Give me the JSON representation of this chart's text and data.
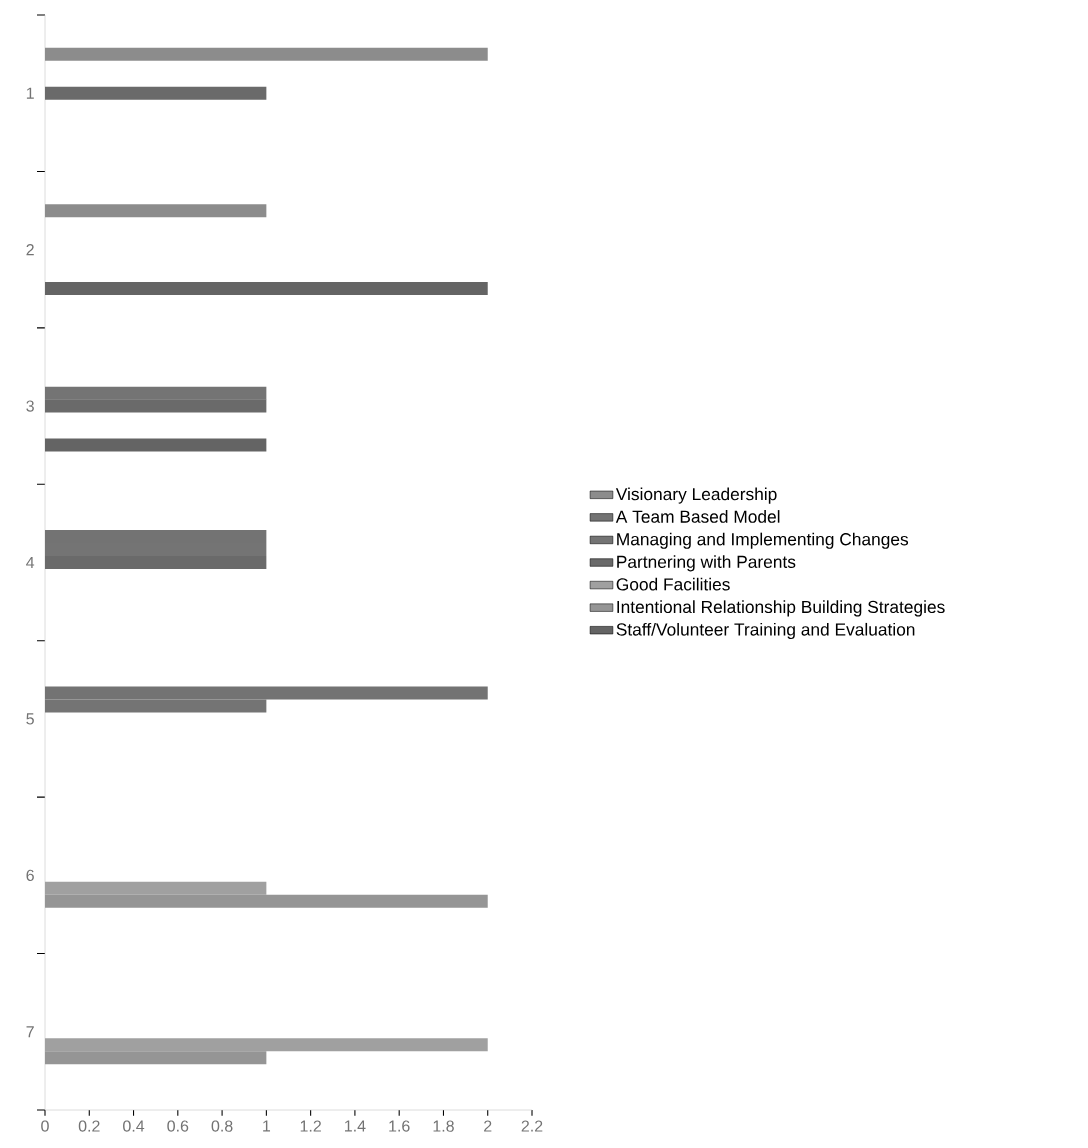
{
  "chart_data": {
    "type": "bar",
    "orientation": "horizontal",
    "categories": [
      "1",
      "2",
      "3",
      "4",
      "5",
      "6",
      "7"
    ],
    "xlim": [
      0,
      2.2
    ],
    "xticks": [
      0,
      0.2,
      0.4,
      0.6,
      0.8,
      1,
      1.2,
      1.4,
      1.6,
      1.8,
      2,
      2.2
    ],
    "grid": false,
    "legend": "right",
    "series": [
      {
        "name": "Visionary Leadership",
        "color": "#8c8c8c",
        "values": [
          2,
          1,
          null,
          null,
          null,
          null,
          null
        ]
      },
      {
        "name": "A Team Based Model",
        "color": "#737373",
        "values": [
          null,
          null,
          null,
          1,
          2,
          null,
          null
        ]
      },
      {
        "name": "Managing and Implementing Changes",
        "color": "#747474",
        "values": [
          null,
          null,
          1,
          1,
          1,
          null,
          null
        ]
      },
      {
        "name": "Partnering with Parents",
        "color": "#6a6a6a",
        "values": [
          1,
          null,
          1,
          1,
          null,
          null,
          null
        ]
      },
      {
        "name": "Good Facilities",
        "color": "#a0a0a0",
        "values": [
          null,
          null,
          null,
          null,
          null,
          1,
          2
        ]
      },
      {
        "name": "Intentional Relationship Building Strategies",
        "color": "#959595",
        "values": [
          null,
          null,
          null,
          null,
          null,
          2,
          1
        ]
      },
      {
        "name": "Staff/Volunteer Training and Evaluation",
        "color": "#646464",
        "values": [
          null,
          2,
          1,
          null,
          null,
          null,
          null
        ]
      }
    ]
  }
}
